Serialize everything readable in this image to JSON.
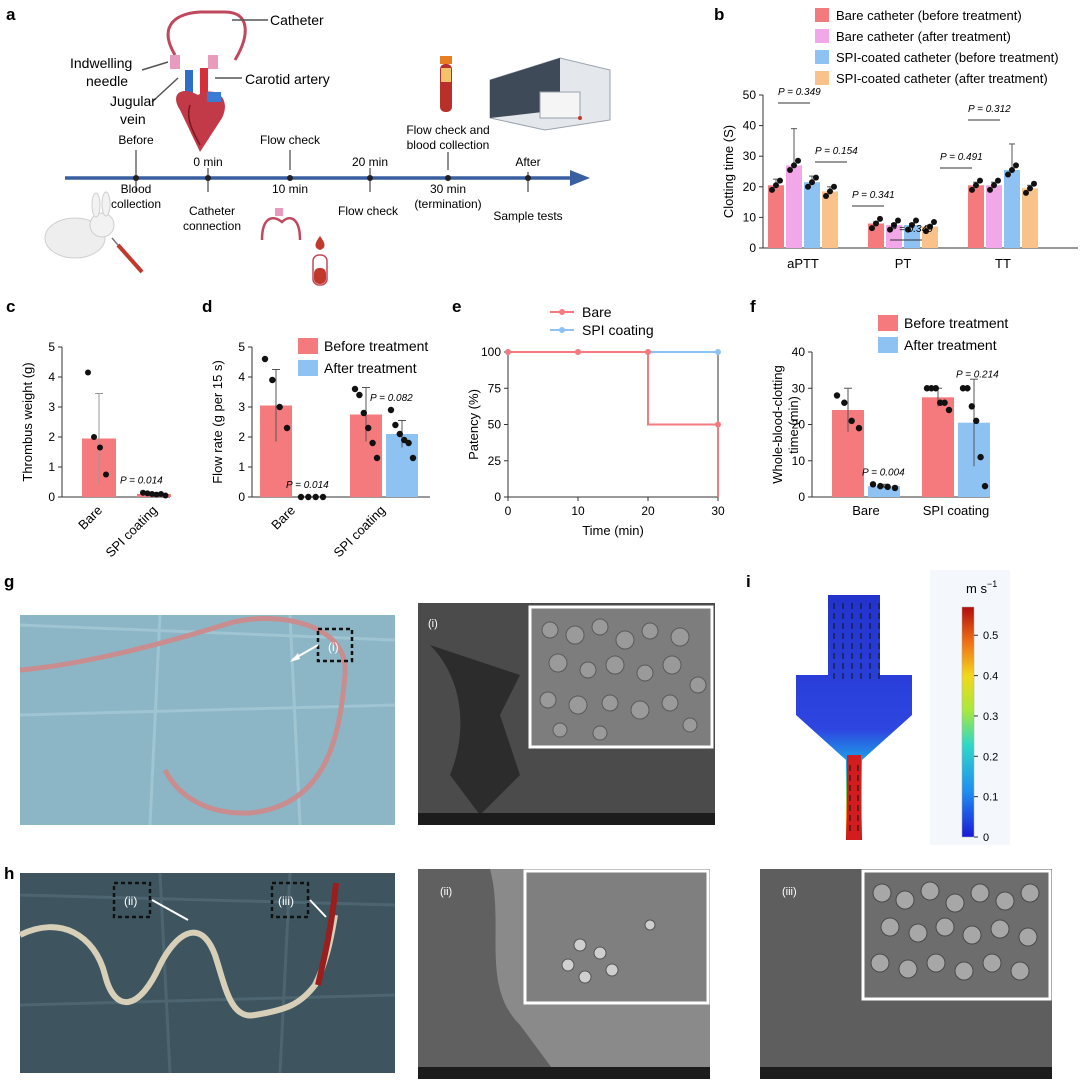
{
  "panel_labels": {
    "a": "a",
    "b": "b",
    "c": "c",
    "d": "d",
    "e": "e",
    "f": "f",
    "g": "g",
    "h": "h",
    "i": "i"
  },
  "schematic": {
    "anatomy": {
      "catheter": "Catheter",
      "needle1": "Indwelling",
      "needle2": "needle",
      "vein1": "Jugular",
      "vein2": "vein",
      "artery": "Carotid artery"
    },
    "timeline_top": [
      {
        "text": "Before"
      },
      {
        "text": "0 min"
      },
      {
        "text": "Flow check"
      },
      {
        "text": "20 min"
      },
      {
        "text": "Flow check and"
      },
      {
        "text": "blood collection"
      },
      {
        "text": "After"
      }
    ],
    "timeline_bottom": [
      {
        "text": "Blood"
      },
      {
        "text": "collection"
      },
      {
        "text": "Catheter"
      },
      {
        "text": "connection"
      },
      {
        "text": "10 min"
      },
      {
        "text": "Flow check"
      },
      {
        "text": "30 min"
      },
      {
        "text": "(termination)"
      },
      {
        "text": "Sample tests"
      }
    ]
  },
  "chart_data": [
    {
      "panel": "b",
      "type": "bar",
      "ylabel": "Clotting time (S)",
      "ylim": [
        0,
        50
      ],
      "yticks": [
        0,
        10,
        20,
        30,
        40,
        50
      ],
      "categories": [
        "aPTT",
        "PT",
        "TT"
      ],
      "series": [
        {
          "name": "Bare catheter (before treatment)",
          "color": "#f47a7e",
          "values": [
            20.5,
            8,
            20.5
          ],
          "err": [
            2,
            0.5,
            1
          ]
        },
        {
          "name": "Bare catheter (after treatment)",
          "color": "#f2a8e8",
          "values": [
            27,
            7.5,
            20.5
          ],
          "err": [
            12,
            0.5,
            1
          ]
        },
        {
          "name": "SPI-coated catheter (before treatment)",
          "color": "#8ec2f2",
          "values": [
            21.5,
            7.5,
            25.5
          ],
          "err": [
            2,
            0.5,
            8.5
          ]
        },
        {
          "name": "SPI-coated catheter (after treatment)",
          "color": "#f9c28a",
          "values": [
            18.5,
            7,
            19.5
          ],
          "err": [
            1.5,
            0.5,
            1
          ]
        }
      ],
      "annotations": [
        "P = 0.349",
        "P = 0.154",
        "P = 0.341",
        "P = 0.340",
        "P = 0.491",
        "P = 0.312"
      ],
      "legend": "top"
    },
    {
      "panel": "c",
      "type": "bar",
      "ylabel": "Thrombus weight (g)",
      "ylim": [
        0,
        5
      ],
      "yticks": [
        0,
        1,
        2,
        3,
        4,
        5
      ],
      "categories": [
        "Bare",
        "SPI coating"
      ],
      "values": [
        1.95,
        0.1
      ],
      "err": [
        1.5,
        0.05
      ],
      "color": "#f47a7e",
      "points": [
        [
          4.15,
          2.0,
          1.65,
          0.75
        ],
        [
          0.14,
          0.12,
          0.1,
          0.08,
          0.1,
          0.05
        ]
      ],
      "annotations": [
        "P = 0.014"
      ]
    },
    {
      "panel": "d",
      "type": "bar",
      "ylabel": "Flow rate (g per 15 s)",
      "ylim": [
        0,
        5
      ],
      "yticks": [
        0,
        1,
        2,
        3,
        4,
        5
      ],
      "categories": [
        "Bare",
        "SPI coating"
      ],
      "series": [
        {
          "name": "Before treatment",
          "color": "#f47a7e",
          "values": [
            3.05,
            2.75
          ],
          "err": [
            1.2,
            0.9
          ]
        },
        {
          "name": "After treatment",
          "color": "#8ec2f2",
          "values": [
            0,
            2.1
          ],
          "err": [
            0,
            0.45
          ]
        }
      ],
      "annotations": [
        "P = 0.014",
        "P = 0.082"
      ],
      "legend": "top-right"
    },
    {
      "panel": "e",
      "type": "line",
      "xlabel": "Time (min)",
      "ylabel": "Patency (%)",
      "xlim": [
        0,
        30
      ],
      "ylim": [
        0,
        100
      ],
      "xticks": [
        0,
        10,
        20,
        30
      ],
      "yticks": [
        0,
        25,
        50,
        75,
        100
      ],
      "series": [
        {
          "name": "Bare",
          "color": "#f47a7e",
          "x": [
            0,
            10,
            20,
            20,
            30,
            30
          ],
          "y": [
            100,
            100,
            100,
            50,
            50,
            0
          ]
        },
        {
          "name": "SPI coating",
          "color": "#8ec2f2",
          "x": [
            0,
            10,
            20,
            30
          ],
          "y": [
            100,
            100,
            100,
            100
          ]
        }
      ],
      "legend": "top"
    },
    {
      "panel": "f",
      "type": "bar",
      "ylabel": "Whole-blood-clotting time (min)",
      "ylim": [
        0,
        40
      ],
      "yticks": [
        0,
        10,
        20,
        30,
        40
      ],
      "categories": [
        "Bare",
        "SPI coating"
      ],
      "series": [
        {
          "name": "Before treatment",
          "color": "#f47a7e",
          "values": [
            24,
            27.5
          ],
          "err": [
            6,
            2.5
          ]
        },
        {
          "name": "After treatment",
          "color": "#8ec2f2",
          "values": [
            3,
            20.5
          ],
          "err": [
            0.5,
            12
          ]
        }
      ],
      "annotations": [
        "P = 0.004",
        "P = 0.214"
      ],
      "legend": "top-right"
    },
    {
      "panel": "i",
      "type": "heatmap",
      "colorbar_label": "m s",
      "colorbar_ticks": [
        "0",
        "0.1",
        "0.2",
        "0.3",
        "0.4",
        "0.5"
      ]
    }
  ],
  "photos": {
    "g_label_i": "(i)",
    "g_sem_label": "(i)",
    "h_label_ii": "(ii)",
    "h_label_iii": "(iii)",
    "h_sem_ii": "(ii)",
    "h_sem_iii": "(iii)"
  }
}
